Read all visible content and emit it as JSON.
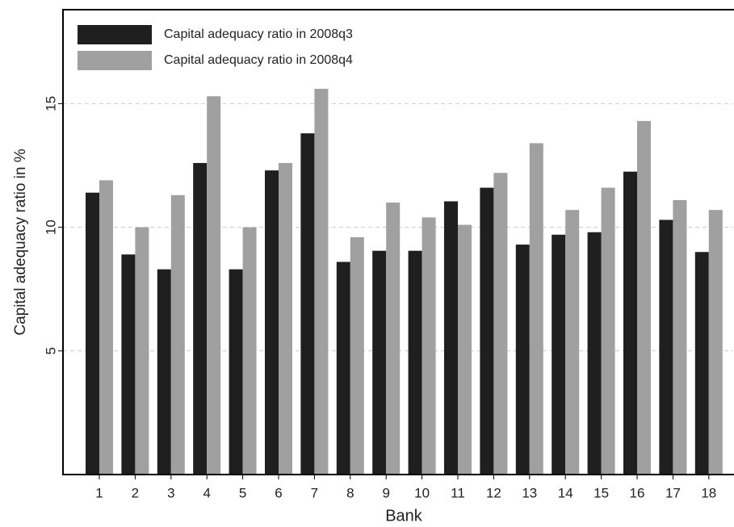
{
  "chart_data": {
    "type": "bar",
    "x_label": "Bank",
    "y_label": "Capital adequacy ratio in %",
    "categories": [
      "1",
      "2",
      "3",
      "4",
      "5",
      "6",
      "7",
      "8",
      "9",
      "10",
      "11",
      "12",
      "13",
      "14",
      "15",
      "16",
      "17",
      "18"
    ],
    "series": [
      {
        "name": "Capital adequacy ratio in 2008q3",
        "color": "#1f1f1f",
        "values": [
          11.4,
          8.9,
          8.3,
          12.6,
          8.3,
          12.3,
          13.8,
          8.6,
          9.05,
          9.05,
          11.05,
          11.6,
          9.3,
          9.7,
          9.8,
          12.25,
          10.3,
          9.0
        ]
      },
      {
        "name": "Capital adequacy ratio in 2008q4",
        "color": "#a0a0a0",
        "values": [
          11.9,
          10.0,
          11.3,
          15.3,
          10.0,
          12.6,
          15.6,
          9.6,
          11.0,
          10.4,
          10.1,
          12.2,
          13.4,
          10.7,
          11.6,
          14.3,
          11.1,
          10.7
        ]
      }
    ],
    "ylim": [
      0,
      18.8
    ],
    "yticks": [
      5,
      10,
      15
    ],
    "grid": true,
    "legend": "top-left"
  }
}
